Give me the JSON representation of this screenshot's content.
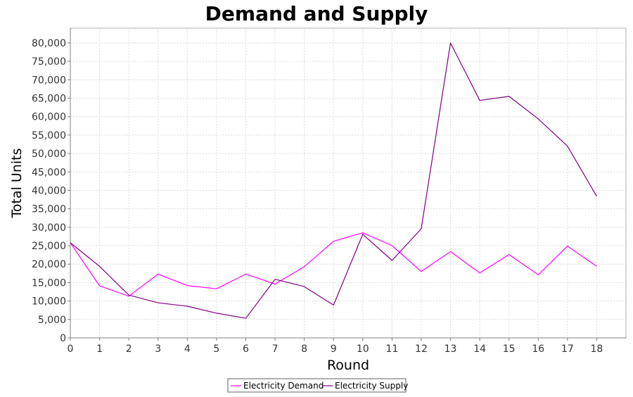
{
  "chart_data": {
    "type": "line",
    "title": "Demand and Supply",
    "xlabel": "Round",
    "ylabel": "Total Units",
    "x": [
      0,
      1,
      2,
      3,
      4,
      5,
      6,
      7,
      8,
      9,
      10,
      11,
      12,
      13,
      14,
      15,
      16,
      17,
      18
    ],
    "xlim": [
      0,
      19
    ],
    "ylim": [
      0,
      84000
    ],
    "yticks": [
      0,
      5000,
      10000,
      15000,
      20000,
      25000,
      30000,
      35000,
      40000,
      45000,
      50000,
      55000,
      60000,
      65000,
      70000,
      75000,
      80000
    ],
    "ytick_labels": [
      "0",
      "5,000",
      "10,000",
      "15,000",
      "20,000",
      "25,000",
      "30,000",
      "35,000",
      "40,000",
      "45,000",
      "50,000",
      "55,000",
      "60,000",
      "65,000",
      "70,000",
      "75,000",
      "80,000"
    ],
    "xtick_labels": [
      "0",
      "1",
      "2",
      "3",
      "4",
      "5",
      "6",
      "7",
      "8",
      "9",
      "10",
      "11",
      "12",
      "13",
      "14",
      "15",
      "16",
      "17",
      "18"
    ],
    "grid": true,
    "legend_position": "bottom-center",
    "series": [
      {
        "name": "Electricity Demand",
        "color": "#ff00ff",
        "values": [
          25800,
          14100,
          11300,
          17300,
          14200,
          13300,
          17300,
          14600,
          19300,
          26200,
          28500,
          25000,
          18000,
          23400,
          17600,
          22600,
          17100,
          24900,
          19400
        ]
      },
      {
        "name": "Electricity Supply",
        "color": "#800080",
        "values": [
          25800,
          19400,
          11600,
          9500,
          8600,
          6700,
          5300,
          15900,
          13900,
          8900,
          28100,
          21000,
          29600,
          80000,
          64400,
          65500,
          59400,
          52000,
          38400
        ]
      }
    ]
  }
}
